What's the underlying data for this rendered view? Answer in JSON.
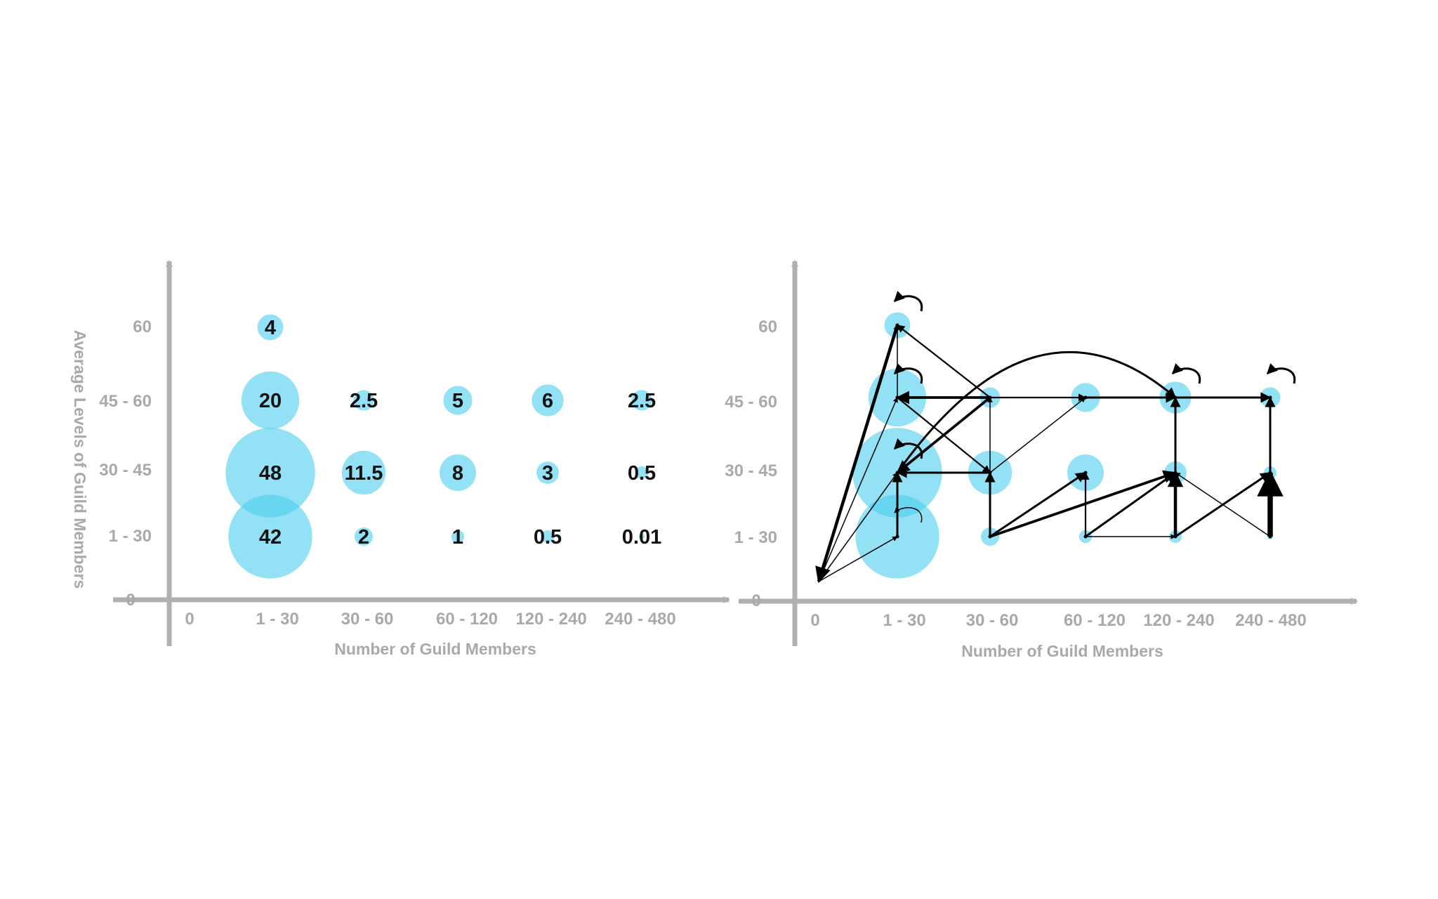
{
  "colors": {
    "bubble": "#4fcfef",
    "axis": "#b0b0b0",
    "axis_text": "#a9a9a9",
    "label": "#111111",
    "arrow": "#000000"
  },
  "chart_data": [
    {
      "type": "scatter",
      "variant": "bubble",
      "title": "",
      "xlabel": "Number of Guild Members",
      "ylabel": "Average Levels of Guild Members",
      "x_origin_label": "0",
      "y_origin_label": "0",
      "x_categories": [
        "1 - 30",
        "30 - 60",
        "60 - 120",
        "120 - 240",
        "240 - 480"
      ],
      "y_categories": [
        "1 - 30",
        "30 - 45",
        "45 - 60",
        "60"
      ],
      "points": [
        {
          "x": "1 - 30",
          "y": "60",
          "value": 4,
          "label": "4"
        },
        {
          "x": "1 - 30",
          "y": "45 - 60",
          "value": 20,
          "label": "20"
        },
        {
          "x": "1 - 30",
          "y": "30 - 45",
          "value": 48,
          "label": "48"
        },
        {
          "x": "1 - 30",
          "y": "1 - 30",
          "value": 42,
          "label": "42"
        },
        {
          "x": "30 - 60",
          "y": "45 - 60",
          "value": 2.5,
          "label": "2.5"
        },
        {
          "x": "30 - 60",
          "y": "30 - 45",
          "value": 11.5,
          "label": "11.5"
        },
        {
          "x": "30 - 60",
          "y": "1 - 30",
          "value": 2,
          "label": "2"
        },
        {
          "x": "60 - 120",
          "y": "45 - 60",
          "value": 5,
          "label": "5"
        },
        {
          "x": "60 - 120",
          "y": "30 - 45",
          "value": 8,
          "label": "8"
        },
        {
          "x": "60 - 120",
          "y": "1 - 30",
          "value": 1,
          "label": "1"
        },
        {
          "x": "120 - 240",
          "y": "45 - 60",
          "value": 6,
          "label": "6"
        },
        {
          "x": "120 - 240",
          "y": "30 - 45",
          "value": 3,
          "label": "3"
        },
        {
          "x": "120 - 240",
          "y": "1 - 30",
          "value": 0.5,
          "label": "0.5"
        },
        {
          "x": "240 - 480",
          "y": "45 - 60",
          "value": 2.5,
          "label": "2.5"
        },
        {
          "x": "240 - 480",
          "y": "30 - 45",
          "value": 0.5,
          "label": "0.5"
        },
        {
          "x": "240 - 480",
          "y": "1 - 30",
          "value": 0.01,
          "label": "0.01"
        }
      ]
    },
    {
      "type": "scatter",
      "variant": "bubble-transition-network",
      "title": "",
      "xlabel": "Number of Guild Members",
      "ylabel": "",
      "x_origin_label": "0",
      "y_origin_label": "0",
      "x_categories": [
        "1 - 30",
        "30 - 60",
        "60 - 120",
        "120 - 240",
        "240 - 480"
      ],
      "y_categories": [
        "1 - 30",
        "30 - 45",
        "45 - 60",
        "60"
      ],
      "nodes": [
        {
          "id": "n1_60",
          "x": "1 - 30",
          "y": "60",
          "value": 4
        },
        {
          "id": "n1_45",
          "x": "1 - 30",
          "y": "45 - 60",
          "value": 20
        },
        {
          "id": "n1_30",
          "x": "1 - 30",
          "y": "30 - 45",
          "value": 48
        },
        {
          "id": "n1_1",
          "x": "1 - 30",
          "y": "1 - 30",
          "value": 42
        },
        {
          "id": "n2_45",
          "x": "30 - 60",
          "y": "45 - 60",
          "value": 2.5
        },
        {
          "id": "n2_30",
          "x": "30 - 60",
          "y": "30 - 45",
          "value": 11.5
        },
        {
          "id": "n2_1",
          "x": "30 - 60",
          "y": "1 - 30",
          "value": 2
        },
        {
          "id": "n3_45",
          "x": "60 - 120",
          "y": "45 - 60",
          "value": 5
        },
        {
          "id": "n3_30",
          "x": "60 - 120",
          "y": "30 - 45",
          "value": 8
        },
        {
          "id": "n3_1",
          "x": "60 - 120",
          "y": "1 - 30",
          "value": 1
        },
        {
          "id": "n4_45",
          "x": "120 - 240",
          "y": "45 - 60",
          "value": 6
        },
        {
          "id": "n4_30",
          "x": "120 - 240",
          "y": "30 - 45",
          "value": 3
        },
        {
          "id": "n4_1",
          "x": "120 - 240",
          "y": "1 - 30",
          "value": 0.5
        },
        {
          "id": "n5_45",
          "x": "240 - 480",
          "y": "45 - 60",
          "value": 2.5
        },
        {
          "id": "n5_30",
          "x": "240 - 480",
          "y": "30 - 45",
          "value": 0.5
        },
        {
          "id": "n5_1",
          "x": "240 - 480",
          "y": "1 - 30",
          "value": 0.01
        }
      ],
      "edges": [
        {
          "from": "n1_60",
          "to": "origin",
          "weight": 3
        },
        {
          "from": "origin",
          "to": "n1_60",
          "weight": 1
        },
        {
          "from": "origin",
          "to": "n1_45",
          "weight": 1
        },
        {
          "from": "origin",
          "to": "n1_30",
          "weight": 1
        },
        {
          "from": "origin",
          "to": "n1_1",
          "weight": 1
        },
        {
          "from": "n1_60",
          "to": "n1_60",
          "weight": 2
        },
        {
          "from": "n1_45",
          "to": "n1_45",
          "weight": 2
        },
        {
          "from": "n1_30",
          "to": "n1_30",
          "weight": 2
        },
        {
          "from": "n1_1",
          "to": "n1_1",
          "weight": 1
        },
        {
          "from": "n4_45",
          "to": "n4_45",
          "weight": 2
        },
        {
          "from": "n5_45",
          "to": "n5_45",
          "weight": 2
        },
        {
          "from": "n2_45",
          "to": "n1_60",
          "weight": 1.5
        },
        {
          "from": "n2_45",
          "to": "n1_45",
          "weight": 2.5
        },
        {
          "from": "n2_45",
          "to": "n1_30",
          "weight": 2.5
        },
        {
          "from": "n2_45",
          "to": "n3_45",
          "weight": 1.5
        },
        {
          "from": "n2_30",
          "to": "n1_30",
          "weight": 2
        },
        {
          "from": "n2_30",
          "to": "n2_45",
          "weight": 1
        },
        {
          "from": "n2_30",
          "to": "n3_45",
          "weight": 1
        },
        {
          "from": "n1_30",
          "to": "n4_45",
          "weight": 2,
          "curved": true
        },
        {
          "from": "n3_45",
          "to": "n4_45",
          "weight": 2
        },
        {
          "from": "n4_45",
          "to": "n5_45",
          "weight": 2
        },
        {
          "from": "n5_30",
          "to": "n5_45",
          "weight": 2
        },
        {
          "from": "n5_1",
          "to": "n5_30",
          "weight": 5
        },
        {
          "from": "n4_1",
          "to": "n5_30",
          "weight": 2
        },
        {
          "from": "n5_1",
          "to": "n4_30",
          "weight": 1
        },
        {
          "from": "n4_1",
          "to": "n4_30",
          "weight": 3
        },
        {
          "from": "n4_30",
          "to": "n4_45",
          "weight": 2
        },
        {
          "from": "n3_1",
          "to": "n4_1",
          "weight": 1
        },
        {
          "from": "n3_1",
          "to": "n4_30",
          "weight": 2
        },
        {
          "from": "n3_1",
          "to": "n3_30",
          "weight": 1.5
        },
        {
          "from": "n2_1",
          "to": "n3_30",
          "weight": 2
        },
        {
          "from": "n2_1",
          "to": "n4_30",
          "weight": 2.5
        },
        {
          "from": "n2_1",
          "to": "n2_30",
          "weight": 2
        },
        {
          "from": "n1_1",
          "to": "n1_30",
          "weight": 2
        },
        {
          "from": "n1_45",
          "to": "n2_30",
          "weight": 1.5
        },
        {
          "from": "n1_45",
          "to": "n1_60",
          "weight": 1
        }
      ]
    }
  ]
}
